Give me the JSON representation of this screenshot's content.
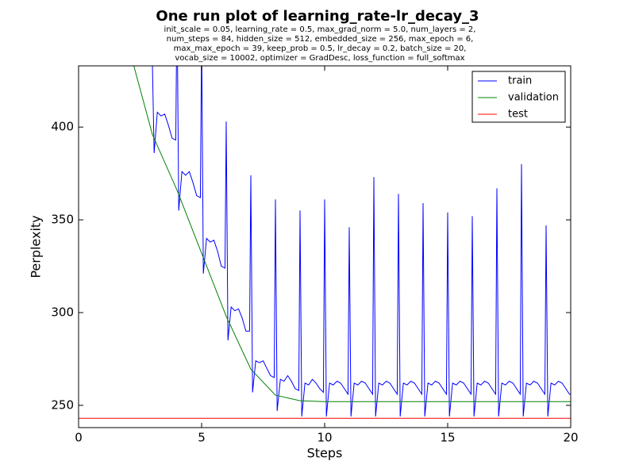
{
  "chart_data": {
    "type": "line",
    "title": "One run plot of learning_rate-lr_decay_3",
    "subtitle": [
      "init_scale = 0.05, learning_rate = 0.5, max_grad_norm = 5.0, num_layers = 2,",
      "num_steps = 84, hidden_size = 512, embedded_size = 256, max_epoch = 6,",
      "max_max_epoch = 39, keep_prob = 0.5, lr_decay = 0.2, batch_size = 20,",
      "vocab_size = 10002, optimizer = GradDesc, loss_function = full_softmax"
    ],
    "x_label": "Steps",
    "y_label": "Perplexity",
    "xlim": [
      0,
      20
    ],
    "xticks": [
      0,
      5,
      10,
      15,
      20
    ],
    "ylim": [
      238,
      433
    ],
    "yticks": [
      250,
      300,
      350,
      400
    ],
    "grid": false,
    "legend": "upper right",
    "series": [
      {
        "name": "train",
        "color": "#0000ff",
        "x": [
          2.8,
          3,
          3.07,
          3.2,
          3.35,
          3.5,
          3.65,
          3.8,
          3.95,
          4,
          4.07,
          4.2,
          4.35,
          4.5,
          4.65,
          4.8,
          4.95,
          5,
          5.07,
          5.2,
          5.35,
          5.5,
          5.65,
          5.8,
          5.95,
          6,
          6.07,
          6.2,
          6.35,
          6.5,
          6.65,
          6.8,
          6.95,
          7,
          7.07,
          7.2,
          7.35,
          7.5,
          7.65,
          7.8,
          7.95,
          8,
          8.07,
          8.2,
          8.35,
          8.5,
          8.65,
          8.8,
          8.95,
          9,
          9.07,
          9.2,
          9.35,
          9.5,
          9.65,
          9.8,
          9.95,
          10,
          10.07,
          10.2,
          10.35,
          10.5,
          10.65,
          10.8,
          10.95,
          11,
          11.07,
          11.2,
          11.35,
          11.5,
          11.65,
          11.8,
          11.95,
          12,
          12.07,
          12.2,
          12.35,
          12.5,
          12.65,
          12.8,
          12.95,
          13,
          13.07,
          13.2,
          13.35,
          13.5,
          13.65,
          13.8,
          13.95,
          14,
          14.07,
          14.2,
          14.35,
          14.5,
          14.65,
          14.8,
          14.95,
          15,
          15.07,
          15.2,
          15.35,
          15.5,
          15.65,
          15.8,
          15.95,
          16,
          16.07,
          16.2,
          16.35,
          16.5,
          16.65,
          16.8,
          16.95,
          17,
          17.07,
          17.2,
          17.35,
          17.5,
          17.65,
          17.8,
          17.95,
          18,
          18.07,
          18.2,
          18.35,
          18.5,
          18.65,
          18.8,
          18.95,
          19,
          19.07,
          19.2,
          19.35,
          19.5,
          19.65,
          19.8,
          19.95,
          20
        ],
        "values": [
          434,
          434,
          386,
          408,
          406,
          407,
          401,
          394,
          393,
          470,
          355,
          376,
          374,
          376,
          370,
          363,
          362,
          450,
          321,
          340,
          338,
          339,
          333,
          325,
          324,
          403,
          285,
          303,
          301,
          302,
          297,
          290,
          290,
          374,
          257,
          274,
          273,
          274,
          270,
          266,
          265,
          361,
          247,
          264,
          263,
          266,
          263,
          259,
          258,
          355,
          244,
          262,
          261,
          264,
          262,
          259,
          257,
          361,
          244,
          262,
          261,
          263,
          262,
          259,
          256,
          346,
          244,
          262,
          261,
          263,
          262,
          259,
          256,
          373,
          244,
          262,
          261,
          263,
          262,
          259,
          256,
          364,
          244,
          262,
          261,
          263,
          262,
          259,
          256,
          359,
          244,
          262,
          261,
          263,
          262,
          259,
          256,
          354,
          244,
          262,
          261,
          263,
          262,
          259,
          256,
          352,
          244,
          262,
          261,
          263,
          262,
          259,
          256,
          367,
          244,
          262,
          261,
          263,
          262,
          259,
          256,
          380,
          244,
          262,
          261,
          263,
          262,
          259,
          256,
          347,
          244,
          262,
          261,
          263,
          262,
          259,
          256,
          256
        ]
      },
      {
        "name": "validation",
        "color": "#008000",
        "x": [
          2,
          3,
          4,
          5,
          6,
          7,
          8,
          9,
          10,
          11,
          12,
          13,
          14,
          15,
          16,
          17,
          18,
          19,
          20
        ],
        "values": [
          445,
          396,
          366,
          332,
          298,
          269.5,
          255.5,
          252.5,
          252,
          252,
          252,
          252,
          252,
          252,
          252,
          252,
          252,
          252,
          252
        ]
      },
      {
        "name": "test",
        "color": "#ff0000",
        "x": [
          0,
          20
        ],
        "values": [
          243,
          243
        ]
      }
    ]
  }
}
